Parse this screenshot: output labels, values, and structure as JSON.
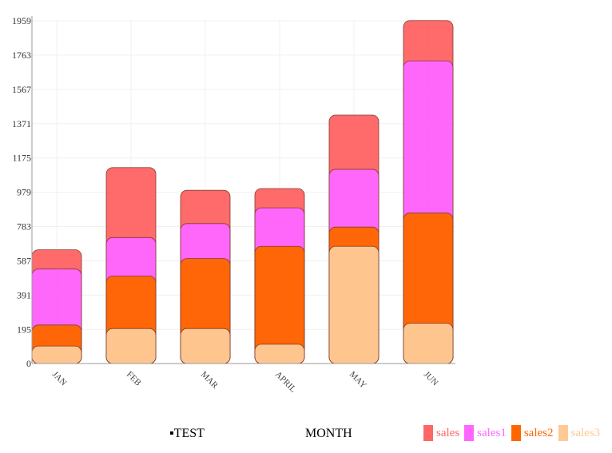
{
  "chart_data": {
    "type": "bar",
    "stacked": true,
    "categories": [
      "JAN",
      "FEB",
      "MAR",
      "APRIL",
      "MAY",
      "JUN"
    ],
    "series": [
      {
        "name": "sales3",
        "color": "#ffc994",
        "values": [
          100,
          200,
          200,
          110,
          670,
          230
        ]
      },
      {
        "name": "sales2",
        "color": "#ff6600",
        "values": [
          120,
          300,
          400,
          560,
          110,
          630
        ]
      },
      {
        "name": "sales1",
        "color": "#ff66ff",
        "values": [
          320,
          220,
          200,
          220,
          330,
          870
        ]
      },
      {
        "name": "sales",
        "color": "#ff6666",
        "values": [
          110,
          400,
          190,
          110,
          310,
          230
        ]
      }
    ],
    "yticks": [
      0,
      195,
      391,
      587,
      783,
      979,
      1175,
      1371,
      1567,
      1763,
      1959
    ],
    "ylim": [
      0,
      1959
    ],
    "grid": true,
    "legend_position": "bottom-right",
    "xlabel_text": "MONTH",
    "title_text": "TEST"
  },
  "footer": {
    "title_marker": "▪",
    "title": "TEST",
    "xlabel": "MONTH"
  },
  "legend": [
    {
      "label": "sales",
      "color": "#ff6666"
    },
    {
      "label": "sales1",
      "color": "#ff66ff"
    },
    {
      "label": "sales2",
      "color": "#ff6600"
    },
    {
      "label": "sales3",
      "color": "#ffc994"
    }
  ]
}
